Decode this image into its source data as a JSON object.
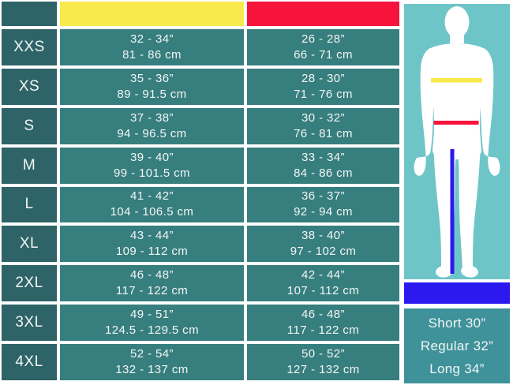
{
  "chart_data": {
    "type": "table",
    "title": "",
    "columns": [
      {
        "id": "size",
        "label": "",
        "color": "#2E6367"
      },
      {
        "id": "yellow",
        "label": "",
        "color": "#F8E94C"
      },
      {
        "id": "red",
        "label": "",
        "color": "#F6143D"
      }
    ],
    "rows": [
      {
        "size": "XXS",
        "yellow": [
          "32 - 34”",
          "81 - 86 cm"
        ],
        "red": [
          "26 - 28”",
          "66 - 71 cm"
        ]
      },
      {
        "size": "XS",
        "yellow": [
          "35 - 36”",
          "89 - 91.5 cm"
        ],
        "red": [
          "28 - 30”",
          "71 - 76 cm"
        ]
      },
      {
        "size": "S",
        "yellow": [
          "37 - 38”",
          "94 - 96.5 cm"
        ],
        "red": [
          "30 - 32”",
          "76 - 81 cm"
        ]
      },
      {
        "size": "M",
        "yellow": [
          "39 - 40”",
          "99 - 101.5 cm"
        ],
        "red": [
          "33 - 34”",
          "84 - 86 cm"
        ]
      },
      {
        "size": "L",
        "yellow": [
          "41 - 42”",
          "104 - 106.5 cm"
        ],
        "red": [
          "36 - 37”",
          "92 - 94 cm"
        ]
      },
      {
        "size": "XL",
        "yellow": [
          "43 - 44”",
          "109 - 112 cm"
        ],
        "red": [
          "38 - 40”",
          "97 - 102 cm"
        ]
      },
      {
        "size": "2XL",
        "yellow": [
          "46 - 48”",
          "117 - 122 cm"
        ],
        "red": [
          "42 - 44”",
          "107 - 112 cm"
        ]
      },
      {
        "size": "3XL",
        "yellow": [
          "49 - 51”",
          "124.5 - 129.5 cm"
        ],
        "red": [
          "46 - 48”",
          "117 - 122 cm"
        ]
      },
      {
        "size": "4XL",
        "yellow": [
          "52 - 54”",
          "132 - 137 cm"
        ],
        "red": [
          "50 - 52”",
          "127 - 132 cm"
        ]
      }
    ]
  },
  "figure": {
    "chest_line_color": "#F8E94C",
    "waist_line_color": "#F6143D",
    "inseam_line_color": "#2B19F0",
    "panel_bg": "#6EC5C8",
    "silhouette_color": "#FFFFFF"
  },
  "inseam_panel": {
    "bar_color": "#2B19F0",
    "labels": [
      "Short 30”",
      "Regular 32”",
      "Long 34”"
    ]
  },
  "colors": {
    "label_cell": "#2E6367",
    "data_cell": "#377E7E",
    "yellow": "#F8E94C",
    "red": "#F6143D",
    "blue": "#2B19F0",
    "figure_bg": "#6EC5C8",
    "lengths_panel_bg": "#3F929A",
    "text": "#F2F6F5"
  }
}
